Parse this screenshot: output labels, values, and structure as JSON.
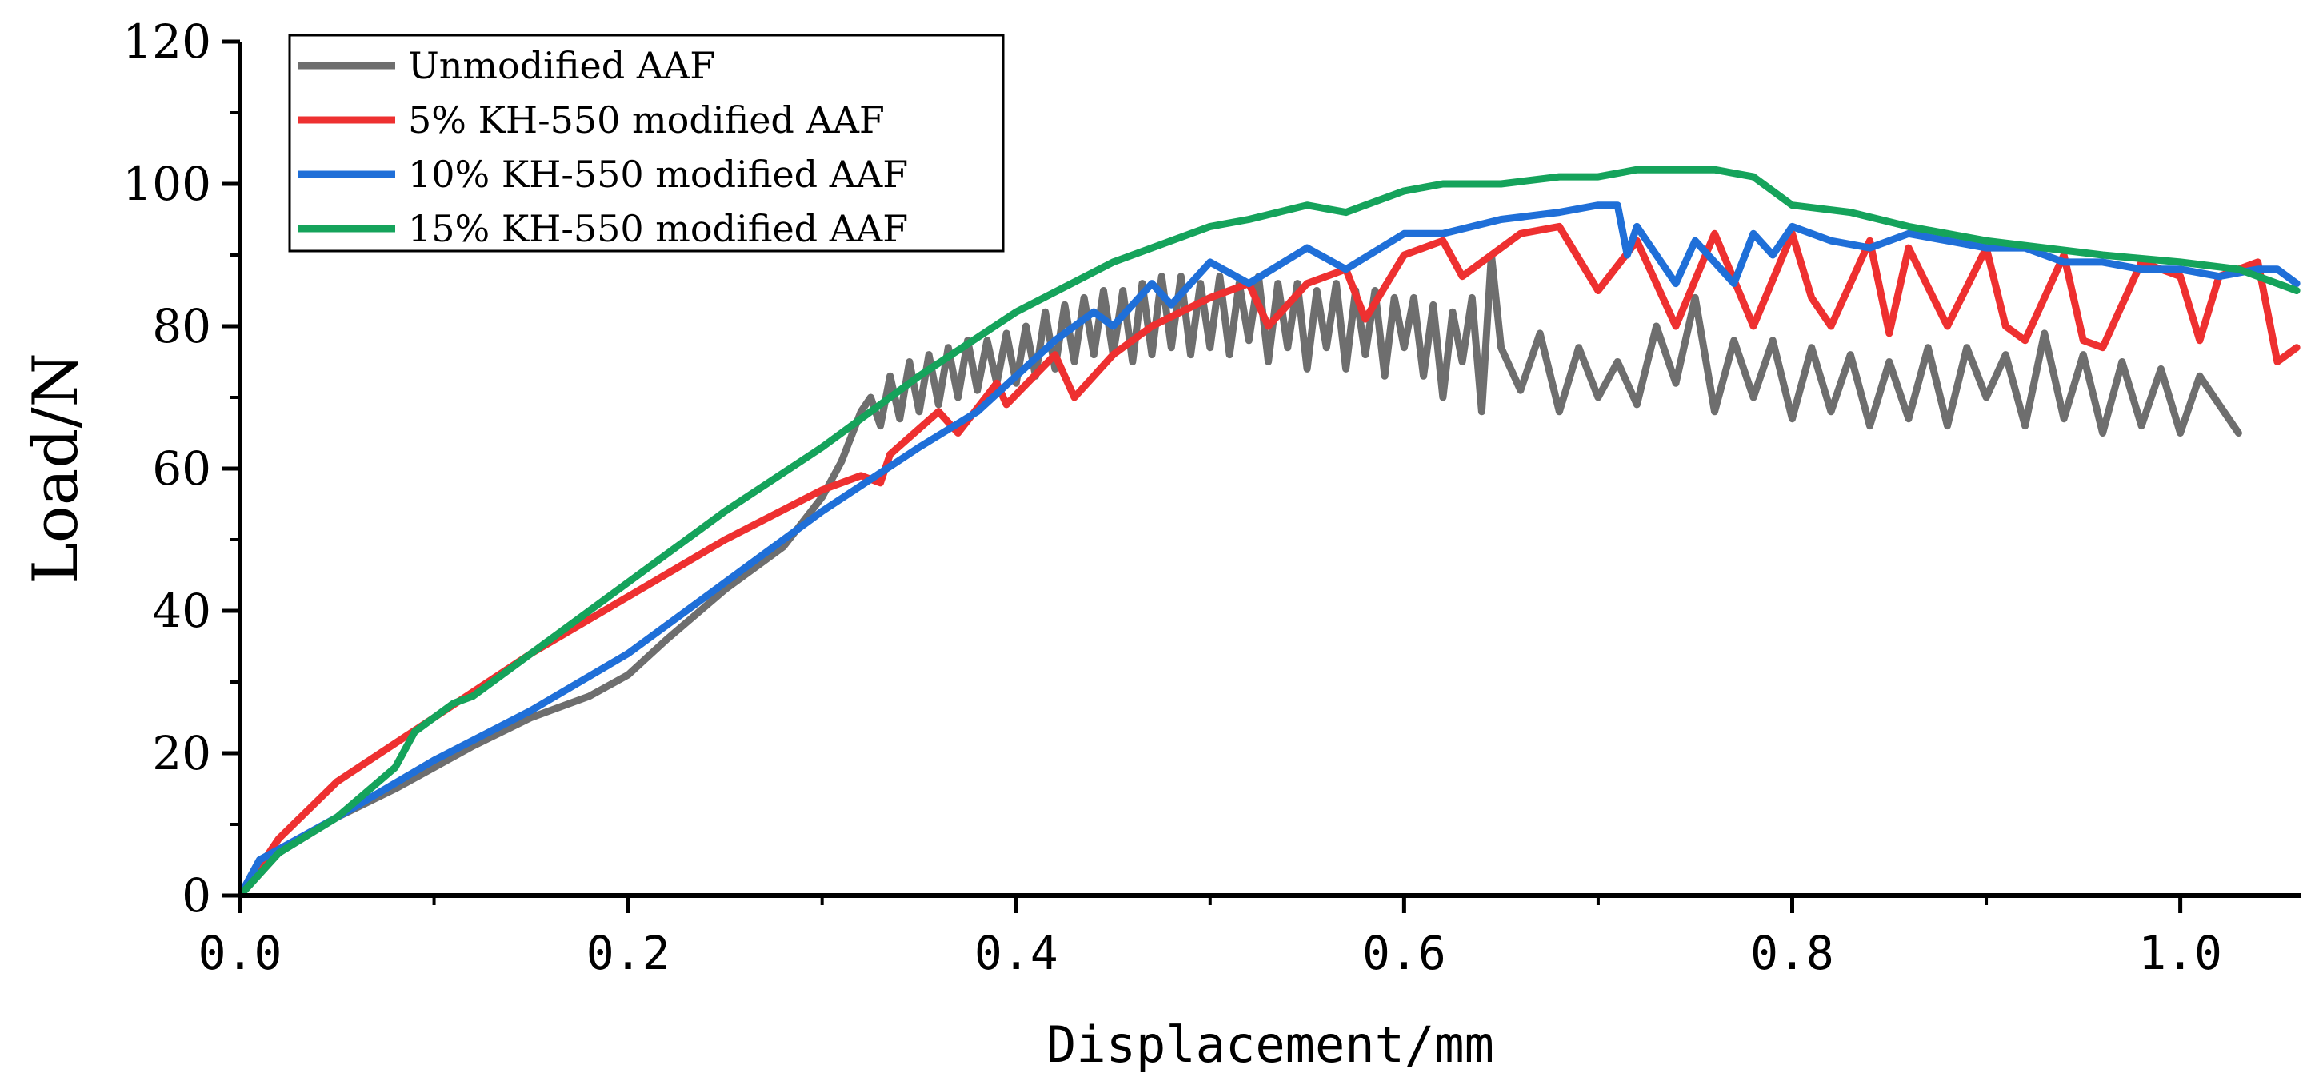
{
  "chart_data": {
    "type": "line",
    "title": "",
    "xlabel": "Displacement/mm",
    "ylabel": "Load/N",
    "xlim": [
      0.0,
      1.062
    ],
    "ylim": [
      0,
      120
    ],
    "xticks": [
      0.0,
      0.2,
      0.4,
      0.6,
      0.8,
      1.0
    ],
    "xtick_labels": [
      "0.0",
      "0.2",
      "0.4",
      "0.6",
      "0.8",
      "1.0"
    ],
    "yticks": [
      0,
      20,
      40,
      60,
      80,
      100,
      120
    ],
    "ytick_labels": [
      "0",
      "20",
      "40",
      "60",
      "80",
      "100",
      "120"
    ],
    "grid": false,
    "legend_position": "top-left",
    "series": [
      {
        "name": "Unmodified AAF",
        "color": "#6e6e6e",
        "x": [
          0.0,
          0.02,
          0.05,
          0.08,
          0.1,
          0.12,
          0.15,
          0.18,
          0.2,
          0.22,
          0.25,
          0.27,
          0.28,
          0.3,
          0.31,
          0.32,
          0.325,
          0.33,
          0.335,
          0.34,
          0.345,
          0.35,
          0.355,
          0.36,
          0.365,
          0.37,
          0.375,
          0.38,
          0.385,
          0.39,
          0.395,
          0.4,
          0.405,
          0.41,
          0.415,
          0.42,
          0.425,
          0.43,
          0.435,
          0.44,
          0.445,
          0.45,
          0.455,
          0.46,
          0.465,
          0.47,
          0.475,
          0.48,
          0.485,
          0.49,
          0.495,
          0.5,
          0.505,
          0.51,
          0.515,
          0.52,
          0.525,
          0.53,
          0.535,
          0.54,
          0.545,
          0.55,
          0.555,
          0.56,
          0.565,
          0.57,
          0.575,
          0.58,
          0.585,
          0.59,
          0.595,
          0.6,
          0.605,
          0.61,
          0.615,
          0.62,
          0.625,
          0.63,
          0.635,
          0.64,
          0.645,
          0.65,
          0.66,
          0.67,
          0.68,
          0.69,
          0.7,
          0.71,
          0.72,
          0.73,
          0.74,
          0.75,
          0.76,
          0.77,
          0.78,
          0.79,
          0.8,
          0.81,
          0.82,
          0.83,
          0.84,
          0.85,
          0.86,
          0.87,
          0.88,
          0.89,
          0.9,
          0.91,
          0.92,
          0.93,
          0.94,
          0.95,
          0.96,
          0.97,
          0.98,
          0.99,
          1.0,
          1.01,
          1.02,
          1.03
        ],
        "y": [
          0,
          6,
          11,
          15,
          18,
          21,
          25,
          28,
          31,
          36,
          43,
          47,
          49,
          56,
          61,
          68,
          70,
          66,
          73,
          67,
          75,
          68,
          76,
          69,
          77,
          70,
          78,
          71,
          78,
          72,
          79,
          72,
          80,
          73,
          82,
          74,
          83,
          75,
          84,
          76,
          85,
          76,
          85,
          75,
          86,
          76,
          87,
          77,
          87,
          76,
          86,
          77,
          87,
          76,
          86,
          78,
          87,
          75,
          86,
          77,
          86,
          74,
          85,
          77,
          86,
          74,
          85,
          76,
          85,
          73,
          84,
          77,
          84,
          73,
          83,
          70,
          82,
          75,
          84,
          68,
          90,
          77,
          71,
          79,
          68,
          77,
          70,
          75,
          69,
          80,
          72,
          84,
          68,
          78,
          70,
          78,
          67,
          77,
          68,
          76,
          66,
          75,
          67,
          77,
          66,
          77,
          70,
          76,
          66,
          79,
          67,
          76,
          65,
          75,
          66,
          74,
          65,
          73,
          69,
          65
        ]
      },
      {
        "name": "5%  KH-550 modified AAF",
        "color": "#ee3030",
        "x": [
          0.0,
          0.02,
          0.05,
          0.1,
          0.15,
          0.2,
          0.25,
          0.3,
          0.32,
          0.33,
          0.335,
          0.36,
          0.37,
          0.39,
          0.395,
          0.42,
          0.43,
          0.45,
          0.47,
          0.5,
          0.52,
          0.53,
          0.55,
          0.57,
          0.58,
          0.6,
          0.62,
          0.63,
          0.66,
          0.68,
          0.7,
          0.72,
          0.74,
          0.76,
          0.78,
          0.8,
          0.81,
          0.82,
          0.84,
          0.85,
          0.86,
          0.88,
          0.9,
          0.91,
          0.92,
          0.94,
          0.95,
          0.96,
          0.98,
          1.0,
          1.01,
          1.02,
          1.04,
          1.05,
          1.055,
          1.06
        ],
        "y": [
          0,
          8,
          16,
          25,
          34,
          42,
          50,
          57,
          59,
          58,
          62,
          68,
          65,
          72,
          69,
          76,
          70,
          76,
          80,
          84,
          86,
          80,
          86,
          88,
          81,
          90,
          92,
          87,
          93,
          94,
          85,
          92,
          80,
          93,
          80,
          93,
          84,
          80,
          92,
          79,
          91,
          80,
          91,
          80,
          78,
          90,
          78,
          77,
          89,
          87,
          78,
          87,
          89,
          75,
          76,
          77
        ]
      },
      {
        "name": "10% KH-550 modified AAF",
        "color": "#1f6fd8",
        "x": [
          0.0,
          0.01,
          0.05,
          0.1,
          0.15,
          0.2,
          0.25,
          0.3,
          0.35,
          0.38,
          0.4,
          0.42,
          0.44,
          0.45,
          0.47,
          0.48,
          0.5,
          0.52,
          0.55,
          0.57,
          0.6,
          0.62,
          0.65,
          0.68,
          0.7,
          0.71,
          0.715,
          0.72,
          0.74,
          0.75,
          0.77,
          0.78,
          0.79,
          0.8,
          0.82,
          0.84,
          0.86,
          0.88,
          0.9,
          0.92,
          0.94,
          0.96,
          0.98,
          1.0,
          1.02,
          1.04,
          1.05,
          1.06
        ],
        "y": [
          0,
          5,
          11,
          19,
          26,
          34,
          44,
          54,
          63,
          68,
          73,
          78,
          82,
          80,
          86,
          83,
          89,
          86,
          91,
          88,
          93,
          93,
          95,
          96,
          97,
          97,
          90,
          94,
          86,
          92,
          86,
          93,
          90,
          94,
          92,
          91,
          93,
          92,
          91,
          91,
          89,
          89,
          88,
          88,
          87,
          88,
          88,
          86
        ]
      },
      {
        "name": "15% KH-550 modified AAF",
        "color": "#15a35b",
        "x": [
          0.0,
          0.02,
          0.05,
          0.08,
          0.09,
          0.11,
          0.12,
          0.15,
          0.2,
          0.25,
          0.3,
          0.35,
          0.4,
          0.45,
          0.5,
          0.52,
          0.55,
          0.57,
          0.6,
          0.62,
          0.65,
          0.68,
          0.7,
          0.72,
          0.74,
          0.76,
          0.78,
          0.79,
          0.8,
          0.83,
          0.86,
          0.9,
          0.93,
          0.96,
          1.0,
          1.03,
          1.06
        ],
        "y": [
          0,
          6,
          11,
          18,
          23,
          27,
          28,
          34,
          44,
          54,
          63,
          73,
          82,
          89,
          94,
          95,
          97,
          96,
          99,
          100,
          100,
          101,
          101,
          102,
          102,
          102,
          101,
          99,
          97,
          96,
          94,
          92,
          91,
          90,
          89,
          88,
          85
        ]
      }
    ]
  }
}
